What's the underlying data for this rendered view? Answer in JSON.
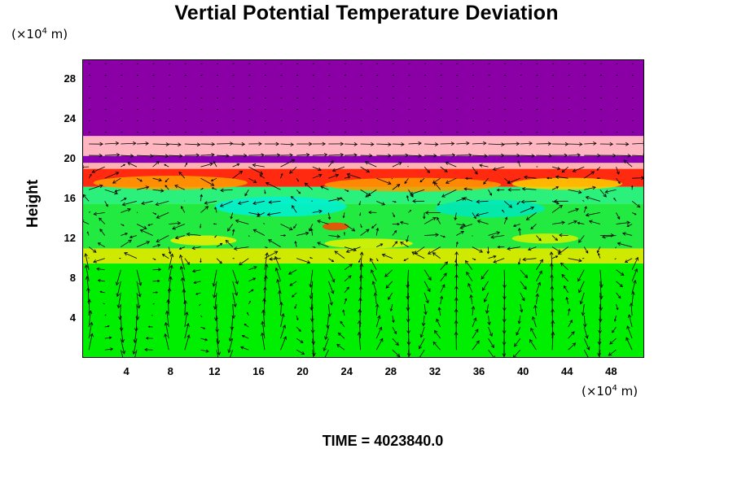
{
  "chart_data": {
    "type": "heatmap",
    "title": "Vertial Potential Temperature Deviation",
    "ylabel": "Height",
    "y_unit": "(×10⁴ m)",
    "x_unit": "(×10⁴ m)",
    "xlabel": "",
    "xlim": [
      0,
      51
    ],
    "ylim": [
      0,
      30
    ],
    "x_ticks": [
      4,
      8,
      12,
      16,
      20,
      24,
      28,
      32,
      36,
      40,
      44,
      48
    ],
    "y_ticks": [
      4,
      8,
      12,
      16,
      20,
      24,
      28
    ],
    "footer": "TIME = 4023840.0",
    "grid": false,
    "bands": [
      {
        "y0": 0,
        "y1": 9.5,
        "color": "#00ee00"
      },
      {
        "y0": 9.5,
        "y1": 11.0,
        "color": "#cfe900"
      },
      {
        "y0": 11.0,
        "y1": 15.5,
        "color": "#22ea40"
      },
      {
        "y0": 15.5,
        "y1": 17.2,
        "color": "#2cf07c"
      },
      {
        "y0": 17.2,
        "y1": 19.0,
        "color": "#ff2a10"
      },
      {
        "y0": 19.0,
        "y1": 19.6,
        "color": "#ffb2b2"
      },
      {
        "y0": 19.6,
        "y1": 20.3,
        "color": "#8a00b0"
      },
      {
        "y0": 20.3,
        "y1": 22.3,
        "color": "#ffb6c1"
      },
      {
        "y0": 22.3,
        "y1": 30,
        "color": "#8b00a6"
      }
    ],
    "patches": [
      {
        "x": 18,
        "y": 15.2,
        "rx": 6,
        "ry": 1.0,
        "color": "#00f0d8"
      },
      {
        "x": 37,
        "y": 15.0,
        "rx": 5,
        "ry": 0.9,
        "color": "#00e8c0"
      },
      {
        "x": 8,
        "y": 17.6,
        "rx": 7,
        "ry": 0.7,
        "color": "#ffa000"
      },
      {
        "x": 30,
        "y": 17.4,
        "rx": 8,
        "ry": 0.7,
        "color": "#ff9a00"
      },
      {
        "x": 44,
        "y": 17.5,
        "rx": 5,
        "ry": 0.6,
        "color": "#ffd000"
      },
      {
        "x": 23,
        "y": 13.2,
        "rx": 1.2,
        "ry": 0.4,
        "color": "#ff4000"
      },
      {
        "x": 11,
        "y": 11.8,
        "rx": 3,
        "ry": 0.5,
        "color": "#f0f000"
      },
      {
        "x": 26,
        "y": 11.5,
        "rx": 4,
        "ry": 0.5,
        "color": "#e8f000"
      },
      {
        "x": 42,
        "y": 12.0,
        "rx": 3,
        "ry": 0.5,
        "color": "#d8f000"
      }
    ],
    "vectors": "wind-vector-field"
  }
}
